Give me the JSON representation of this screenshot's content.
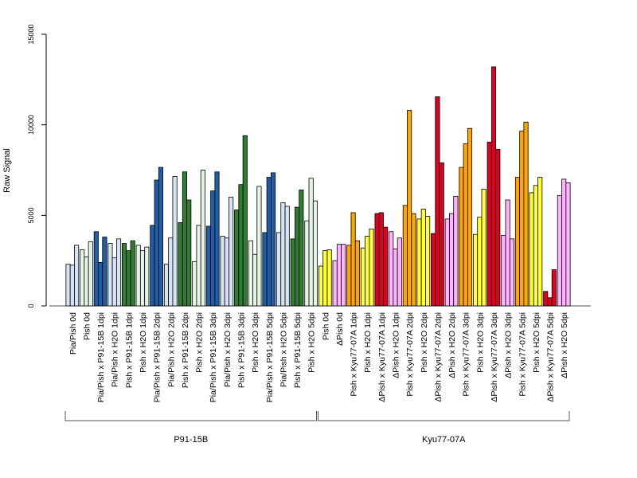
{
  "chart_data": {
    "type": "bar",
    "title": "",
    "xlabel": "",
    "ylabel": "Raw Signal",
    "ylim": [
      0,
      15000
    ],
    "yticks": [
      "0",
      "5000",
      "10000",
      "15000"
    ],
    "grid": false,
    "legend": "none",
    "categories": [
      {
        "label": "Pia/Pish 0d",
        "color": "#d6e4f5",
        "values": [
          2300,
          2250,
          3350
        ]
      },
      {
        "label": "Pish 0d",
        "color": "#e6f4e6",
        "values": [
          3100,
          2700,
          3550
        ]
      },
      {
        "label": "Pia/Pish x P91-15B 1dpi",
        "color": "#1f5fa8",
        "values": [
          4100,
          2400,
          3800
        ]
      },
      {
        "label": "Pia/Pish x H2O 1dpi",
        "color": "#d6e4f5",
        "values": [
          3450,
          2650,
          3700
        ]
      },
      {
        "label": "Pish x P91-15B 1dpi",
        "color": "#2e7d32",
        "values": [
          3450,
          3050,
          3600
        ]
      },
      {
        "label": "Pish x H2O 1dpi",
        "color": "#e6f4e6",
        "values": [
          3350,
          3050,
          3250
        ]
      },
      {
        "label": "Pia/Pish x P91-15B 2dpi",
        "color": "#1f5fa8",
        "values": [
          4450,
          6950,
          7650
        ]
      },
      {
        "label": "Pia/Pish x H2O 2dpi",
        "color": "#d6e4f5",
        "values": [
          2300,
          3750,
          7150
        ]
      },
      {
        "label": "Pish x P91-15B 2dpi",
        "color": "#2e7d32",
        "values": [
          4600,
          7400,
          5850
        ]
      },
      {
        "label": "Pish x H2O 2dpi",
        "color": "#e6f4e6",
        "values": [
          2450,
          4450,
          7500
        ]
      },
      {
        "label": "Pia/Pish x P91-15B 3dpi",
        "color": "#1f5fa8",
        "values": [
          4400,
          6350,
          7400
        ]
      },
      {
        "label": "Pia/Pish x H2O 3dpi",
        "color": "#d6e4f5",
        "values": [
          3850,
          3750,
          6000
        ]
      },
      {
        "label": "Pish x P91-15B 3dpi",
        "color": "#2e7d32",
        "values": [
          5300,
          6700,
          9400
        ]
      },
      {
        "label": "Pish x H2O 3dpi",
        "color": "#e6f4e6",
        "values": [
          3600,
          2850,
          6600
        ]
      },
      {
        "label": "Pia/Pish x P91-15B 5dpi",
        "color": "#1f5fa8",
        "values": [
          4050,
          7100,
          7350
        ]
      },
      {
        "label": "Pia/Pish x H2O 5dpi",
        "color": "#d6e4f5",
        "values": [
          4050,
          5700,
          5500
        ]
      },
      {
        "label": "Pish x P91-15B 5dpi",
        "color": "#2e7d32",
        "values": [
          3700,
          5450,
          6400
        ]
      },
      {
        "label": "Pish x H2O 5dpi",
        "color": "#e6f4e6",
        "values": [
          4700,
          7050,
          5800
        ]
      },
      {
        "label": "Pish 0d",
        "color": "#ffff33",
        "values": [
          2200,
          3050,
          3100
        ]
      },
      {
        "label": "ΔPish 0d",
        "color": "#ffb3ff",
        "values": [
          2500,
          3400,
          3400
        ]
      },
      {
        "label": "Pish x Kyu77-07A 1dpi",
        "color": "#ffa500",
        "values": [
          3350,
          5150,
          3600
        ]
      },
      {
        "label": "Pish x H2O 1dpi",
        "color": "#ffff33",
        "values": [
          3200,
          3850,
          4250
        ]
      },
      {
        "label": "ΔPish x Kyu77-07A 1dpi",
        "color": "#e00020",
        "values": [
          5100,
          5150,
          4350
        ]
      },
      {
        "label": "ΔPish x H2O 1dpi",
        "color": "#ffb3ff",
        "values": [
          4100,
          3150,
          3750
        ]
      },
      {
        "label": "Pish x Kyu77-07A 2dpi",
        "color": "#ffa500",
        "values": [
          5550,
          10800,
          5100
        ]
      },
      {
        "label": "Pish x H2O 2dpi",
        "color": "#ffff33",
        "values": [
          4800,
          5350,
          4950
        ]
      },
      {
        "label": "ΔPish x Kyu77-07A 2dpi",
        "color": "#e00020",
        "values": [
          4000,
          11550,
          7900
        ]
      },
      {
        "label": "ΔPish x H2O 2dpi",
        "color": "#ffb3ff",
        "values": [
          4800,
          5100,
          6050
        ]
      },
      {
        "label": "Pish x Kyu77-07A 3dpi",
        "color": "#ffa500",
        "values": [
          7650,
          8950,
          9800
        ]
      },
      {
        "label": "Pish x H2O 3dpi",
        "color": "#ffff33",
        "values": [
          3950,
          4900,
          6450
        ]
      },
      {
        "label": "ΔPish x Kyu77-07A 3dpi",
        "color": "#e00020",
        "values": [
          9050,
          13200,
          8650
        ]
      },
      {
        "label": "ΔPish x H2O 3dpi",
        "color": "#ffb3ff",
        "values": [
          3900,
          5850,
          3700
        ]
      },
      {
        "label": "Pish x Kyu77-07A 5dpi",
        "color": "#ffa500",
        "values": [
          7100,
          9650,
          10150
        ]
      },
      {
        "label": "Pish x H2O 5dpi",
        "color": "#ffff33",
        "values": [
          6250,
          6650,
          7100
        ]
      },
      {
        "label": "ΔPish x Kyu77-07A 5dpi",
        "color": "#e00020",
        "values": [
          800,
          450,
          2000
        ]
      },
      {
        "label": "ΔPish x H2O 5dpi",
        "color": "#ffb3ff",
        "values": [
          6100,
          7000,
          6800
        ]
      }
    ],
    "groups": [
      {
        "label": "P91-15B",
        "from": 0,
        "to": 17
      },
      {
        "label": "Kyu77-07A",
        "from": 18,
        "to": 35
      }
    ]
  }
}
